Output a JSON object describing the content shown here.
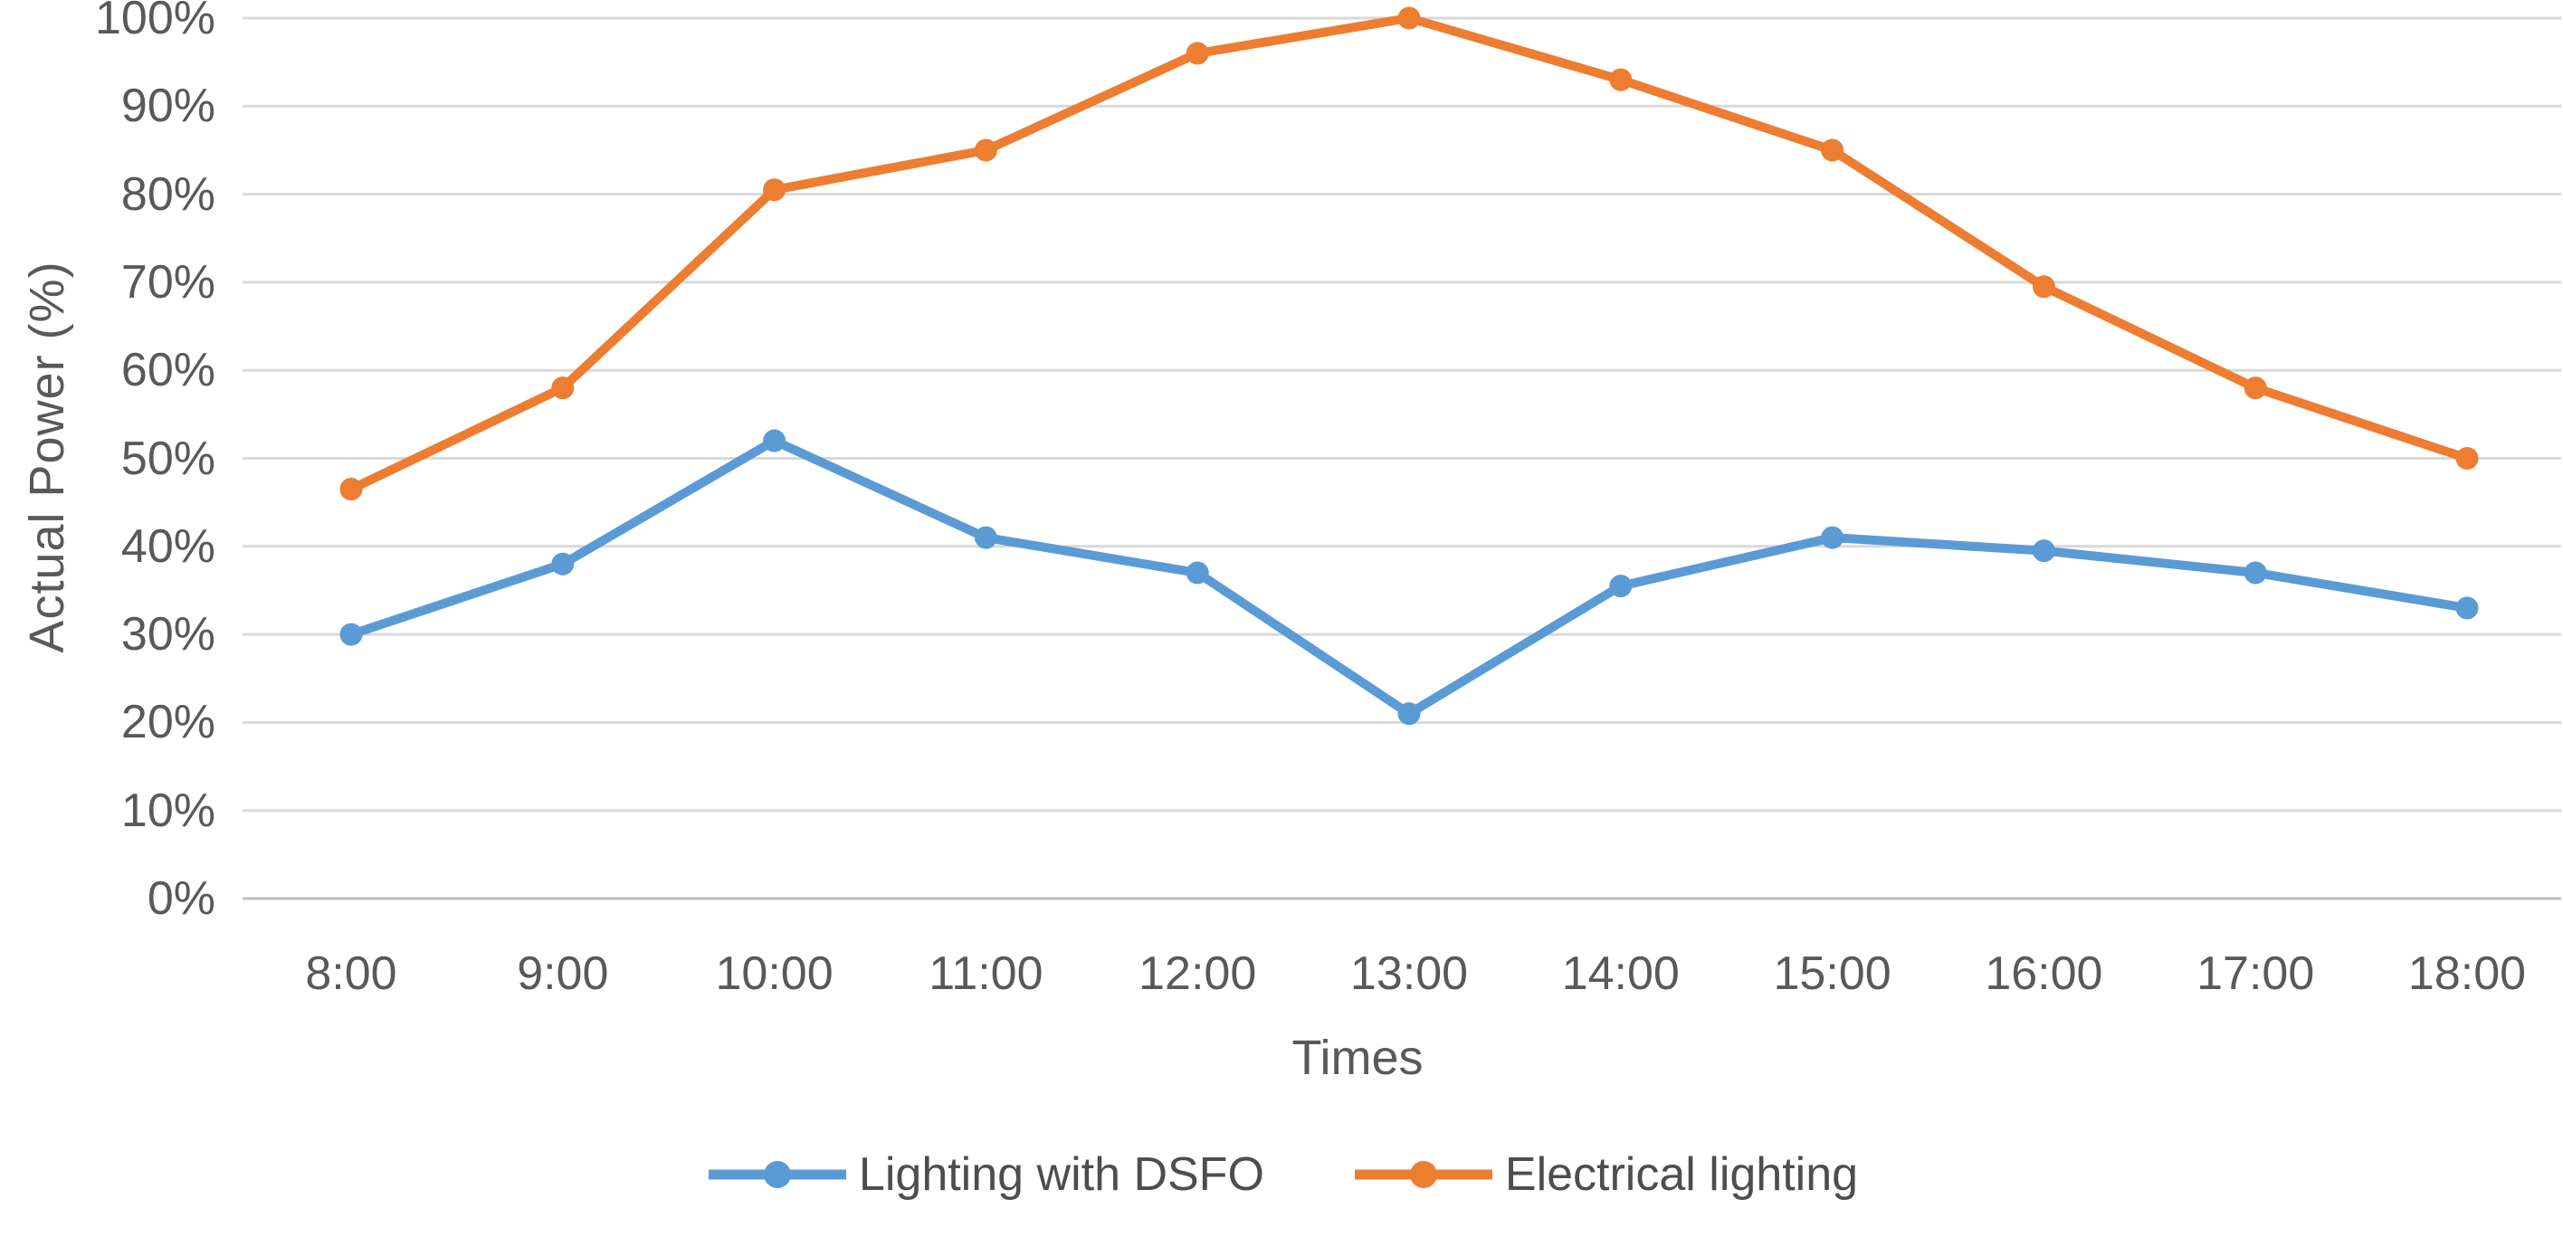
{
  "chart_data": {
    "type": "line",
    "title": "",
    "xlabel": "Times",
    "ylabel": "Actual Power (%)",
    "categories": [
      "8:00",
      "9:00",
      "10:00",
      "11:00",
      "12:00",
      "13:00",
      "14:00",
      "15:00",
      "16:00",
      "17:00",
      "18:00"
    ],
    "series": [
      {
        "name": "Lighting with DSFO",
        "color": "#5B9BD5",
        "values": [
          30,
          38,
          52,
          41,
          37,
          21,
          35.5,
          41,
          39.5,
          37,
          33
        ]
      },
      {
        "name": "Electrical lighting",
        "color": "#ED7D31",
        "values": [
          46.5,
          58,
          80.5,
          85,
          96,
          100,
          93,
          85,
          69.5,
          58,
          50
        ]
      }
    ],
    "ylim": [
      0,
      100
    ],
    "ytick_step": 10,
    "ytick_format": "percent",
    "grid": "horizontal",
    "legend_position": "bottom",
    "gridline_color": "#D9D9D9",
    "axis_line_color": "#BFBFBF",
    "text_color": "#595959",
    "marker": "circle"
  }
}
